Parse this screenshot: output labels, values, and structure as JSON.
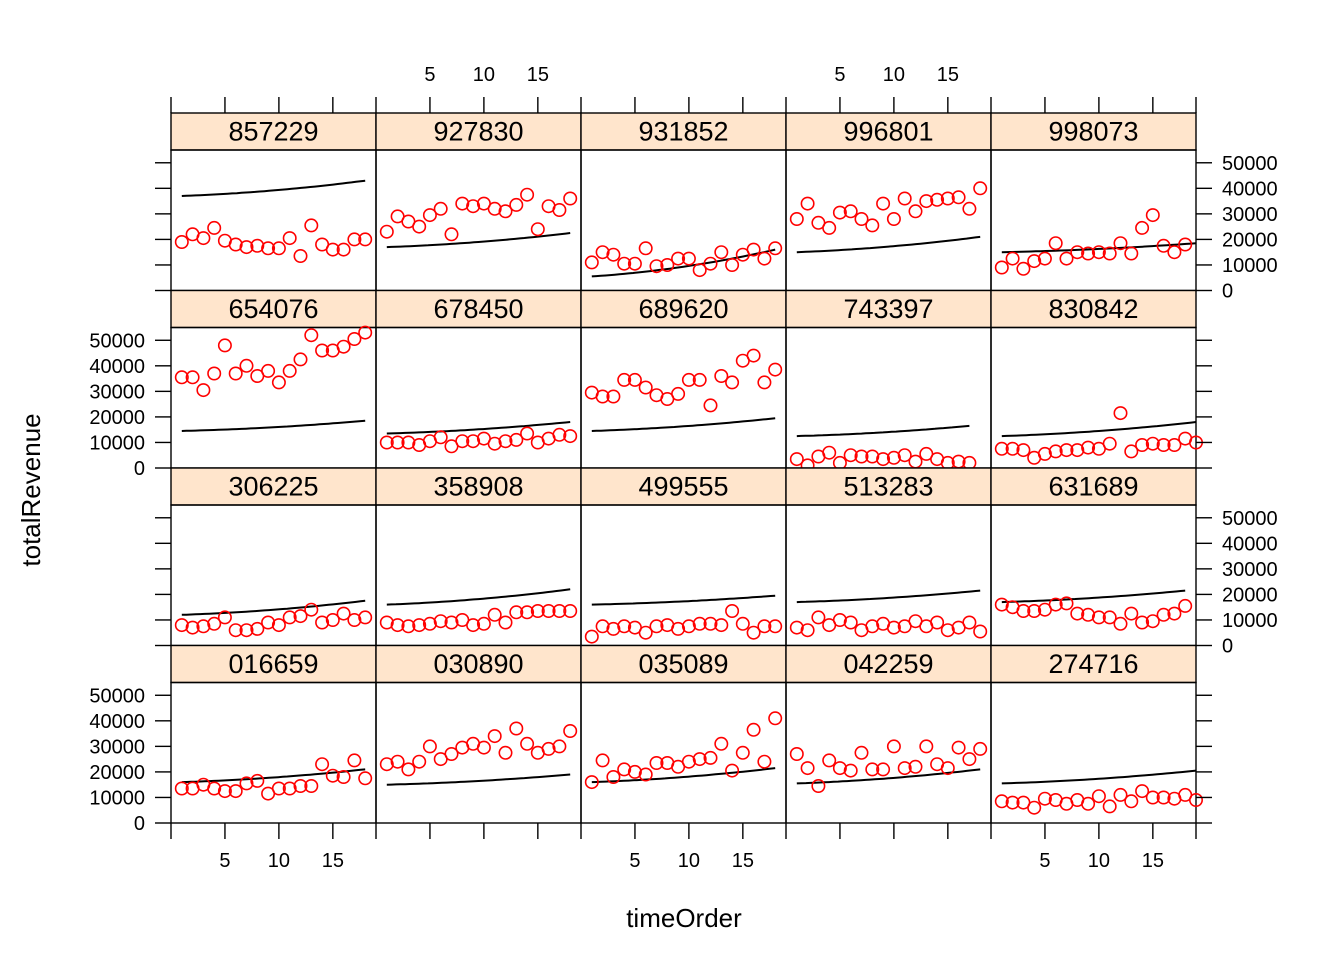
{
  "chart_data": {
    "type": "scatter",
    "layout": "trellis",
    "xlabel": "timeOrder",
    "ylabel": "totalRevenue",
    "xlim": [
      0,
      19
    ],
    "ylim": [
      0,
      55000
    ],
    "x_ticks": [
      5,
      10,
      15
    ],
    "x_tick_labels": [
      "5",
      "10",
      "15"
    ],
    "y_ticks": [
      0,
      10000,
      20000,
      30000,
      40000,
      50000
    ],
    "y_tick_labels": [
      "0",
      "10000",
      "20000",
      "30000",
      "40000",
      "50000"
    ],
    "point_color": "#ff0000",
    "line_color": "#000000",
    "strip_color": "#ffe5cc",
    "panels": [
      {
        "label": "857229",
        "row": 0,
        "col": 0,
        "points": [
          19000,
          22000,
          20500,
          24500,
          19500,
          18000,
          17000,
          17500,
          16500,
          16500,
          20500,
          13500,
          25500,
          18000,
          16000,
          16000,
          20000,
          20000
        ],
        "fit": [
          37000,
          43000
        ]
      },
      {
        "label": "927830",
        "row": 0,
        "col": 1,
        "points": [
          23000,
          29000,
          27000,
          25000,
          29500,
          32000,
          22000,
          34000,
          33000,
          34000,
          32000,
          31000,
          33500,
          37500,
          24000,
          33000,
          31500,
          36000
        ],
        "fit": [
          17000,
          22500
        ]
      },
      {
        "label": "931852",
        "row": 0,
        "col": 2,
        "points": [
          11000,
          15000,
          14000,
          10500,
          10500,
          16500,
          9500,
          10000,
          12500,
          12500,
          8000,
          10500,
          15000,
          10000,
          14000,
          16000,
          12500,
          16500
        ],
        "fit": [
          5500,
          16000
        ]
      },
      {
        "label": "996801",
        "row": 0,
        "col": 3,
        "points": [
          28000,
          34000,
          26500,
          24500,
          30500,
          31000,
          28000,
          25500,
          34000,
          28000,
          36000,
          31000,
          35000,
          35500,
          36000,
          36500,
          32000,
          40000
        ],
        "fit": [
          15000,
          21000
        ]
      },
      {
        "label": "998073",
        "row": 0,
        "col": 4,
        "points": [
          9000,
          12500,
          8500,
          11500,
          12500,
          18500,
          12500,
          15000,
          14500,
          15000,
          14500,
          18500,
          14500,
          24500,
          29500,
          17500,
          15000,
          18000
        ],
        "fit": [
          15000,
          18500
        ],
        "x_range": [
          1,
          19
        ]
      },
      {
        "label": "654076",
        "row": 1,
        "col": 0,
        "points": [
          35500,
          35500,
          30500,
          37000,
          48000,
          37000,
          40000,
          36000,
          38000,
          33500,
          38000,
          42500,
          52000,
          46000,
          46000,
          47500,
          50500,
          53000
        ],
        "fit": [
          14500,
          18500
        ]
      },
      {
        "label": "678450",
        "row": 1,
        "col": 1,
        "points": [
          10000,
          10000,
          10000,
          9000,
          10500,
          12000,
          8500,
          10500,
          10500,
          11500,
          9500,
          10500,
          11000,
          13500,
          10000,
          11500,
          13000,
          12500
        ],
        "fit": [
          13500,
          18000
        ]
      },
      {
        "label": "689620",
        "row": 1,
        "col": 2,
        "points": [
          29500,
          28000,
          28000,
          34500,
          34500,
          31500,
          28500,
          27000,
          29000,
          34500,
          34500,
          24500,
          36000,
          33500,
          42000,
          44000,
          33500,
          38500
        ],
        "fit": [
          14500,
          19500
        ]
      },
      {
        "label": "743397",
        "row": 1,
        "col": 3,
        "points": [
          3500,
          1000,
          4500,
          6000,
          2000,
          5000,
          4500,
          4500,
          3500,
          4000,
          5000,
          2500,
          5500,
          3500,
          2000,
          2500,
          2000
        ],
        "fit": [
          12500,
          16500
        ]
      },
      {
        "label": "830842",
        "row": 1,
        "col": 4,
        "points": [
          7500,
          7500,
          7000,
          4000,
          5500,
          6500,
          7000,
          7000,
          8000,
          7500,
          9500,
          21500,
          6500,
          9000,
          9500,
          9000,
          9000,
          11500,
          10000
        ],
        "fit": [
          12500,
          18000
        ]
      },
      {
        "label": "306225",
        "row": 2,
        "col": 0,
        "points": [
          8000,
          7000,
          7500,
          8500,
          11000,
          6000,
          6000,
          6500,
          9000,
          8000,
          11000,
          11500,
          14000,
          9000,
          10000,
          12500,
          10000,
          11000
        ],
        "fit": [
          12000,
          17500
        ]
      },
      {
        "label": "358908",
        "row": 2,
        "col": 1,
        "points": [
          9000,
          8000,
          7500,
          8000,
          8500,
          9500,
          9000,
          10000,
          8000,
          8500,
          12000,
          9000,
          13000,
          13000,
          13500,
          13500,
          13500,
          13500
        ],
        "fit": [
          16000,
          22000
        ]
      },
      {
        "label": "499555",
        "row": 2,
        "col": 2,
        "points": [
          3500,
          7500,
          6500,
          7500,
          7000,
          5000,
          7500,
          8000,
          6500,
          7500,
          8500,
          8500,
          8000,
          13500,
          8500,
          5000,
          7500,
          7500
        ],
        "fit": [
          16000,
          19500
        ]
      },
      {
        "label": "513283",
        "row": 2,
        "col": 3,
        "points": [
          7000,
          6000,
          11000,
          8000,
          10000,
          9000,
          6000,
          7500,
          8500,
          7000,
          7500,
          9500,
          7500,
          9000,
          6000,
          7000,
          9000,
          5500
        ],
        "fit": [
          17000,
          21500
        ]
      },
      {
        "label": "631689",
        "row": 2,
        "col": 4,
        "points": [
          16000,
          15000,
          13500,
          13500,
          14000,
          16000,
          16500,
          12500,
          12000,
          11000,
          11000,
          8500,
          12500,
          9000,
          9500,
          12000,
          12500,
          15500
        ],
        "fit": [
          17000,
          21500
        ]
      },
      {
        "label": "016659",
        "row": 3,
        "col": 0,
        "points": [
          13500,
          13500,
          15000,
          13500,
          12500,
          12500,
          15500,
          16500,
          11500,
          13500,
          13500,
          14500,
          14500,
          23000,
          18500,
          18000,
          24500,
          17500
        ],
        "fit": [
          16000,
          21000
        ]
      },
      {
        "label": "030890",
        "row": 3,
        "col": 1,
        "points": [
          23000,
          24000,
          21000,
          24000,
          30000,
          25000,
          27000,
          29500,
          31000,
          29500,
          34000,
          27500,
          37000,
          31000,
          27500,
          29000,
          30000,
          36000
        ],
        "fit": [
          15000,
          19000
        ]
      },
      {
        "label": "035089",
        "row": 3,
        "col": 2,
        "points": [
          16000,
          24500,
          18000,
          21000,
          20000,
          19000,
          23500,
          23500,
          22000,
          24000,
          25000,
          25500,
          31000,
          20500,
          27500,
          36500,
          24000,
          41000
        ],
        "fit": [
          16000,
          21500
        ]
      },
      {
        "label": "042259",
        "row": 3,
        "col": 3,
        "points": [
          27000,
          21500,
          14500,
          24500,
          21500,
          20500,
          27500,
          21000,
          21000,
          30000,
          21500,
          22000,
          30000,
          23000,
          21500,
          29500,
          25000,
          29000
        ],
        "fit": [
          15500,
          21000
        ]
      },
      {
        "label": "274716",
        "row": 3,
        "col": 4,
        "points": [
          8500,
          8000,
          8000,
          6000,
          9500,
          9000,
          7500,
          9000,
          7500,
          10500,
          6500,
          11000,
          8500,
          12500,
          10000,
          10000,
          9500,
          11000,
          9000
        ],
        "fit": [
          15500,
          20500
        ]
      }
    ]
  }
}
